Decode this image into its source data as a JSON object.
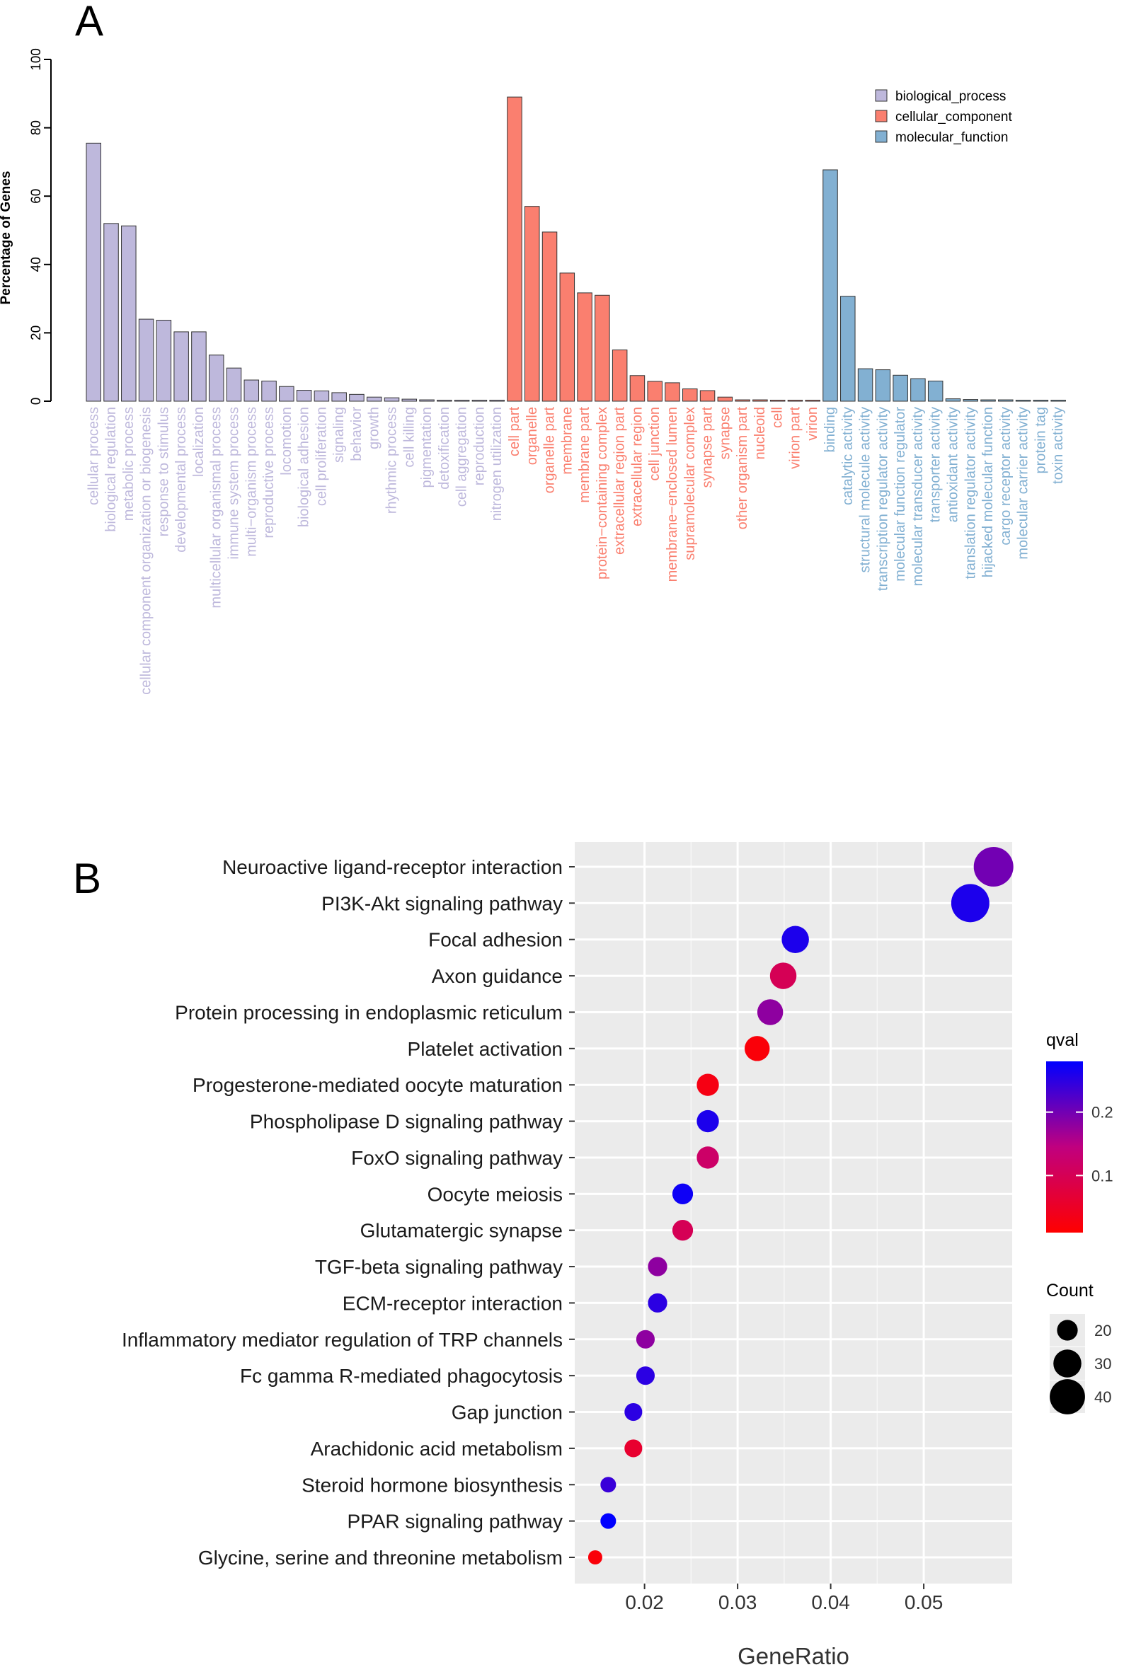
{
  "chart_data": [
    {
      "panel_label": "A",
      "type": "bar",
      "ylabel": "Percentage of Genes",
      "ylim": [
        0,
        100
      ],
      "yticks": [
        0,
        20,
        40,
        60,
        80,
        100
      ],
      "legend": {
        "position": "top-right",
        "entries": [
          "biological_process",
          "cellular_component",
          "molecular_function"
        ]
      },
      "colors": {
        "biological_process": "#beb8dc",
        "cellular_component": "#fa7f6f",
        "molecular_function": "#82b0d2"
      },
      "series": [
        {
          "name": "biological_process",
          "categories": [
            "cellular process",
            "biological regulation",
            "metabolic process",
            "cellular component organization or biogenesis",
            "response to stimulus",
            "developmental process",
            "localization",
            "multicellular organismal process",
            "immune system process",
            "multi−organism process",
            "reproductive process",
            "locomotion",
            "biological adhesion",
            "cell proliferation",
            "signaling",
            "behavior",
            "growth",
            "rhythmic process",
            "cell killing",
            "pigmentation",
            "detoxification",
            "cell aggregation",
            "reproduction",
            "nitrogen utilization"
          ],
          "values": [
            75.5,
            52,
            51.3,
            24,
            23.7,
            20.3,
            20.3,
            13.5,
            9.7,
            6.2,
            5.9,
            4.3,
            3.2,
            3,
            2.5,
            2,
            1.2,
            1,
            0.6,
            0.4,
            0.3,
            0.3,
            0.3,
            0.3
          ]
        },
        {
          "name": "cellular_component",
          "categories": [
            "cell part",
            "organelle",
            "organelle part",
            "membrane",
            "membrane part",
            "protein−containing complex",
            "extracellular region part",
            "extracellular region",
            "cell junction",
            "membrane−enclosed lumen",
            "supramolecular complex",
            "synapse part",
            "synapse",
            "other organism part",
            "nucleoid",
            "cell",
            "virion part",
            "virion"
          ],
          "values": [
            89,
            57,
            49.5,
            37.5,
            31.7,
            31,
            15,
            7.5,
            5.8,
            5.4,
            3.6,
            3.1,
            1.2,
            0.4,
            0.4,
            0.3,
            0.3,
            0.3
          ]
        },
        {
          "name": "molecular_function",
          "categories": [
            "binding",
            "catalytic activity",
            "structural molecule activity",
            "transcription regulator activity",
            "molecular function regulator",
            "molecular transducer activity",
            "transporter activity",
            "antioxidant activity",
            "translation regulator activity",
            "hijacked molecular function",
            "cargo receptor activity",
            "molecular carrier activity",
            "protein tag",
            "toxin activity"
          ],
          "values": [
            67.7,
            30.7,
            9.5,
            9.2,
            7.6,
            6.6,
            5.9,
            0.7,
            0.5,
            0.4,
            0.4,
            0.3,
            0.3,
            0.3
          ]
        }
      ]
    },
    {
      "panel_label": "B",
      "type": "scatter",
      "xlabel": "GeneRatio",
      "xticks": [
        0.02,
        0.03,
        0.04,
        0.05
      ],
      "xlim": [
        0.0125,
        0.0595
      ],
      "color_legend": {
        "title": "qval",
        "ticks": [
          0.1,
          0.2
        ],
        "range": [
          0.01,
          0.28
        ],
        "low_color": "#ff0000",
        "high_color": "#0000ff"
      },
      "size_legend": {
        "title": "Count",
        "ticks": [
          20,
          30,
          40
        ]
      },
      "points": [
        {
          "term": "Neuroactive ligand-receptor interaction",
          "gene_ratio": 0.0575,
          "qval": 0.2,
          "count": 46
        },
        {
          "term": "PI3K-Akt signaling pathway",
          "gene_ratio": 0.055,
          "qval": 0.26,
          "count": 44
        },
        {
          "term": "Focal adhesion",
          "gene_ratio": 0.0362,
          "qval": 0.26,
          "count": 29
        },
        {
          "term": "Axon guidance",
          "gene_ratio": 0.0349,
          "qval": 0.1,
          "count": 28
        },
        {
          "term": "Protein processing in endoplasmic reticulum",
          "gene_ratio": 0.0335,
          "qval": 0.18,
          "count": 27
        },
        {
          "term": "Platelet activation",
          "gene_ratio": 0.0321,
          "qval": 0.02,
          "count": 26
        },
        {
          "term": "Progesterone-mediated oocyte maturation",
          "gene_ratio": 0.0268,
          "qval": 0.03,
          "count": 22
        },
        {
          "term": "Phospholipase D signaling pathway",
          "gene_ratio": 0.0268,
          "qval": 0.26,
          "count": 22
        },
        {
          "term": "FoxO signaling pathway",
          "gene_ratio": 0.0268,
          "qval": 0.12,
          "count": 22
        },
        {
          "term": "Oocyte meiosis",
          "gene_ratio": 0.0241,
          "qval": 0.27,
          "count": 20
        },
        {
          "term": "Glutamatergic synapse",
          "gene_ratio": 0.0241,
          "qval": 0.1,
          "count": 20
        },
        {
          "term": "TGF-beta signaling pathway",
          "gene_ratio": 0.0214,
          "qval": 0.18,
          "count": 18
        },
        {
          "term": "ECM-receptor interaction",
          "gene_ratio": 0.0214,
          "qval": 0.25,
          "count": 18
        },
        {
          "term": "Inflammatory mediator regulation of TRP channels",
          "gene_ratio": 0.0201,
          "qval": 0.18,
          "count": 17
        },
        {
          "term": "Fc gamma R-mediated phagocytosis",
          "gene_ratio": 0.0201,
          "qval": 0.25,
          "count": 17
        },
        {
          "term": "Gap junction",
          "gene_ratio": 0.0188,
          "qval": 0.25,
          "count": 16
        },
        {
          "term": "Arachidonic acid metabolism",
          "gene_ratio": 0.0188,
          "qval": 0.06,
          "count": 16
        },
        {
          "term": "Steroid hormone biosynthesis",
          "gene_ratio": 0.0161,
          "qval": 0.24,
          "count": 13
        },
        {
          "term": "PPAR signaling pathway",
          "gene_ratio": 0.0161,
          "qval": 0.28,
          "count": 13
        },
        {
          "term": "Glycine, serine and threonine metabolism",
          "gene_ratio": 0.0147,
          "qval": 0.02,
          "count": 11
        }
      ]
    }
  ]
}
